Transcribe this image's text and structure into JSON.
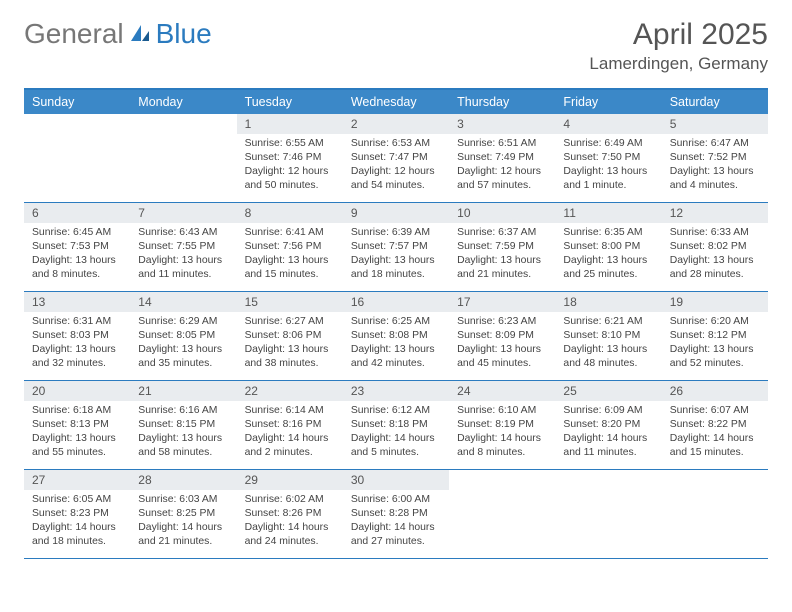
{
  "header": {
    "logo_gray": "General",
    "logo_blue": "Blue",
    "month_title": "April 2025",
    "location": "Lamerdingen, Germany"
  },
  "colors": {
    "header_bar": "#3b88c8",
    "border": "#2b7bbf",
    "daynum_bg": "#e9ecef",
    "text": "#555555",
    "body_text": "#444444"
  },
  "weekdays": [
    "Sunday",
    "Monday",
    "Tuesday",
    "Wednesday",
    "Thursday",
    "Friday",
    "Saturday"
  ],
  "weeks": [
    [
      {
        "n": "",
        "sr": "",
        "ss": "",
        "dl": ""
      },
      {
        "n": "",
        "sr": "",
        "ss": "",
        "dl": ""
      },
      {
        "n": "1",
        "sr": "Sunrise: 6:55 AM",
        "ss": "Sunset: 7:46 PM",
        "dl": "Daylight: 12 hours and 50 minutes."
      },
      {
        "n": "2",
        "sr": "Sunrise: 6:53 AM",
        "ss": "Sunset: 7:47 PM",
        "dl": "Daylight: 12 hours and 54 minutes."
      },
      {
        "n": "3",
        "sr": "Sunrise: 6:51 AM",
        "ss": "Sunset: 7:49 PM",
        "dl": "Daylight: 12 hours and 57 minutes."
      },
      {
        "n": "4",
        "sr": "Sunrise: 6:49 AM",
        "ss": "Sunset: 7:50 PM",
        "dl": "Daylight: 13 hours and 1 minute."
      },
      {
        "n": "5",
        "sr": "Sunrise: 6:47 AM",
        "ss": "Sunset: 7:52 PM",
        "dl": "Daylight: 13 hours and 4 minutes."
      }
    ],
    [
      {
        "n": "6",
        "sr": "Sunrise: 6:45 AM",
        "ss": "Sunset: 7:53 PM",
        "dl": "Daylight: 13 hours and 8 minutes."
      },
      {
        "n": "7",
        "sr": "Sunrise: 6:43 AM",
        "ss": "Sunset: 7:55 PM",
        "dl": "Daylight: 13 hours and 11 minutes."
      },
      {
        "n": "8",
        "sr": "Sunrise: 6:41 AM",
        "ss": "Sunset: 7:56 PM",
        "dl": "Daylight: 13 hours and 15 minutes."
      },
      {
        "n": "9",
        "sr": "Sunrise: 6:39 AM",
        "ss": "Sunset: 7:57 PM",
        "dl": "Daylight: 13 hours and 18 minutes."
      },
      {
        "n": "10",
        "sr": "Sunrise: 6:37 AM",
        "ss": "Sunset: 7:59 PM",
        "dl": "Daylight: 13 hours and 21 minutes."
      },
      {
        "n": "11",
        "sr": "Sunrise: 6:35 AM",
        "ss": "Sunset: 8:00 PM",
        "dl": "Daylight: 13 hours and 25 minutes."
      },
      {
        "n": "12",
        "sr": "Sunrise: 6:33 AM",
        "ss": "Sunset: 8:02 PM",
        "dl": "Daylight: 13 hours and 28 minutes."
      }
    ],
    [
      {
        "n": "13",
        "sr": "Sunrise: 6:31 AM",
        "ss": "Sunset: 8:03 PM",
        "dl": "Daylight: 13 hours and 32 minutes."
      },
      {
        "n": "14",
        "sr": "Sunrise: 6:29 AM",
        "ss": "Sunset: 8:05 PM",
        "dl": "Daylight: 13 hours and 35 minutes."
      },
      {
        "n": "15",
        "sr": "Sunrise: 6:27 AM",
        "ss": "Sunset: 8:06 PM",
        "dl": "Daylight: 13 hours and 38 minutes."
      },
      {
        "n": "16",
        "sr": "Sunrise: 6:25 AM",
        "ss": "Sunset: 8:08 PM",
        "dl": "Daylight: 13 hours and 42 minutes."
      },
      {
        "n": "17",
        "sr": "Sunrise: 6:23 AM",
        "ss": "Sunset: 8:09 PM",
        "dl": "Daylight: 13 hours and 45 minutes."
      },
      {
        "n": "18",
        "sr": "Sunrise: 6:21 AM",
        "ss": "Sunset: 8:10 PM",
        "dl": "Daylight: 13 hours and 48 minutes."
      },
      {
        "n": "19",
        "sr": "Sunrise: 6:20 AM",
        "ss": "Sunset: 8:12 PM",
        "dl": "Daylight: 13 hours and 52 minutes."
      }
    ],
    [
      {
        "n": "20",
        "sr": "Sunrise: 6:18 AM",
        "ss": "Sunset: 8:13 PM",
        "dl": "Daylight: 13 hours and 55 minutes."
      },
      {
        "n": "21",
        "sr": "Sunrise: 6:16 AM",
        "ss": "Sunset: 8:15 PM",
        "dl": "Daylight: 13 hours and 58 minutes."
      },
      {
        "n": "22",
        "sr": "Sunrise: 6:14 AM",
        "ss": "Sunset: 8:16 PM",
        "dl": "Daylight: 14 hours and 2 minutes."
      },
      {
        "n": "23",
        "sr": "Sunrise: 6:12 AM",
        "ss": "Sunset: 8:18 PM",
        "dl": "Daylight: 14 hours and 5 minutes."
      },
      {
        "n": "24",
        "sr": "Sunrise: 6:10 AM",
        "ss": "Sunset: 8:19 PM",
        "dl": "Daylight: 14 hours and 8 minutes."
      },
      {
        "n": "25",
        "sr": "Sunrise: 6:09 AM",
        "ss": "Sunset: 8:20 PM",
        "dl": "Daylight: 14 hours and 11 minutes."
      },
      {
        "n": "26",
        "sr": "Sunrise: 6:07 AM",
        "ss": "Sunset: 8:22 PM",
        "dl": "Daylight: 14 hours and 15 minutes."
      }
    ],
    [
      {
        "n": "27",
        "sr": "Sunrise: 6:05 AM",
        "ss": "Sunset: 8:23 PM",
        "dl": "Daylight: 14 hours and 18 minutes."
      },
      {
        "n": "28",
        "sr": "Sunrise: 6:03 AM",
        "ss": "Sunset: 8:25 PM",
        "dl": "Daylight: 14 hours and 21 minutes."
      },
      {
        "n": "29",
        "sr": "Sunrise: 6:02 AM",
        "ss": "Sunset: 8:26 PM",
        "dl": "Daylight: 14 hours and 24 minutes."
      },
      {
        "n": "30",
        "sr": "Sunrise: 6:00 AM",
        "ss": "Sunset: 8:28 PM",
        "dl": "Daylight: 14 hours and 27 minutes."
      },
      {
        "n": "",
        "sr": "",
        "ss": "",
        "dl": ""
      },
      {
        "n": "",
        "sr": "",
        "ss": "",
        "dl": ""
      },
      {
        "n": "",
        "sr": "",
        "ss": "",
        "dl": ""
      }
    ]
  ]
}
